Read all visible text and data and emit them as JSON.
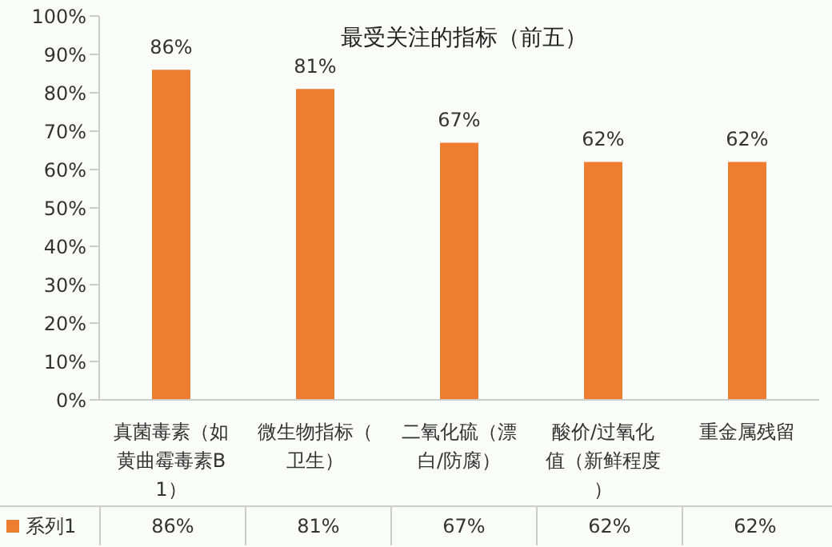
{
  "chart_data": {
    "type": "bar",
    "title": "最受关注的指标（前五）",
    "categories": [
      "真菌毒素（如黄曲霉毒素B1）",
      "微生物指标（卫生）",
      "二氧化硫（漂白/防腐）",
      "酸价/过氧化值（新鲜程度）",
      "重金属残留"
    ],
    "series": [
      {
        "name": "系列1",
        "color": "#ed7d31",
        "values": [
          86,
          81,
          67,
          62,
          62
        ],
        "value_labels": [
          "86%",
          "81%",
          "67%",
          "62%",
          "62%"
        ]
      }
    ],
    "ylim": [
      0,
      100
    ],
    "yticks": [
      {
        "value": 0,
        "label": "0%"
      },
      {
        "value": 10,
        "label": "10%"
      },
      {
        "value": 20,
        "label": "20%"
      },
      {
        "value": 30,
        "label": "30%"
      },
      {
        "value": 40,
        "label": "40%"
      },
      {
        "value": 50,
        "label": "50%"
      },
      {
        "value": 60,
        "label": "60%"
      },
      {
        "value": 70,
        "label": "70%"
      },
      {
        "value": 80,
        "label": "80%"
      },
      {
        "value": 90,
        "label": "90%"
      },
      {
        "value": 100,
        "label": "100%"
      }
    ],
    "data_labels": true,
    "legend": "bottom",
    "grid": false
  }
}
